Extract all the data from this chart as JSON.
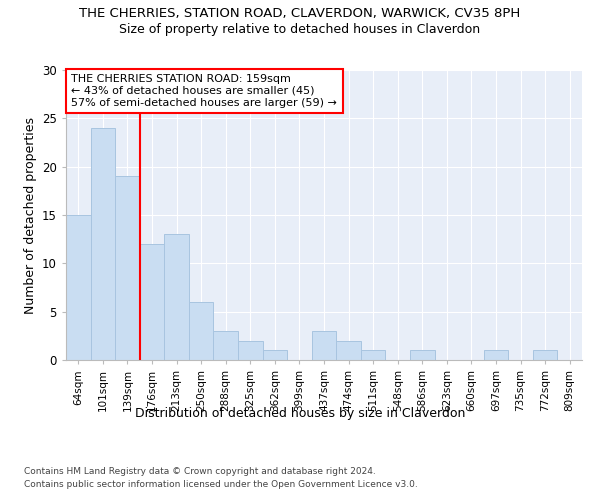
{
  "title": "THE CHERRIES, STATION ROAD, CLAVERDON, WARWICK, CV35 8PH",
  "subtitle": "Size of property relative to detached houses in Claverdon",
  "xlabel": "Distribution of detached houses by size in Claverdon",
  "ylabel": "Number of detached properties",
  "categories": [
    "64sqm",
    "101sqm",
    "139sqm",
    "176sqm",
    "213sqm",
    "250sqm",
    "288sqm",
    "325sqm",
    "362sqm",
    "399sqm",
    "437sqm",
    "474sqm",
    "511sqm",
    "548sqm",
    "586sqm",
    "623sqm",
    "660sqm",
    "697sqm",
    "735sqm",
    "772sqm",
    "809sqm"
  ],
  "values": [
    15,
    24,
    19,
    12,
    13,
    6,
    3,
    2,
    1,
    0,
    3,
    2,
    1,
    0,
    1,
    0,
    0,
    1,
    0,
    1,
    0
  ],
  "bar_color": "#c9ddf2",
  "bar_edgecolor": "#a8c4e0",
  "red_line_index": 2.5,
  "ylim": [
    0,
    30
  ],
  "yticks": [
    0,
    5,
    10,
    15,
    20,
    25,
    30
  ],
  "bg_color": "#e8eef8",
  "grid_color": "#ffffff",
  "annotation_text": "THE CHERRIES STATION ROAD: 159sqm\n← 43% of detached houses are smaller (45)\n57% of semi-detached houses are larger (59) →",
  "footer1": "Contains HM Land Registry data © Crown copyright and database right 2024.",
  "footer2": "Contains public sector information licensed under the Open Government Licence v3.0."
}
